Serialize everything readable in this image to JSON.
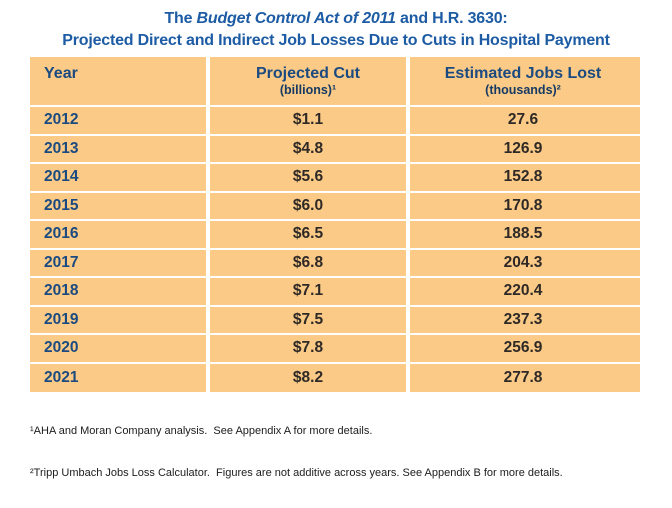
{
  "colors": {
    "table_background": "#FACA86",
    "title_blue": "#1D5CA4",
    "header_navy": "#1A4A80",
    "value_dark": "#2E2926",
    "grid_line": "#FFFFFF"
  },
  "title": {
    "line1_prefix": "The ",
    "line1_italic": "Budget Control Act of 2011",
    "line1_suffix": " and H.R. 3630:",
    "line2": "Projected Direct and Indirect Job Losses Due to Cuts in Hospital Payment"
  },
  "table": {
    "headers": {
      "year": "Year",
      "cut_main": "Projected Cut",
      "cut_sub": "(billions)¹",
      "jobs_main": "Estimated Jobs Lost",
      "jobs_sub": "(thousands)²"
    },
    "rows": [
      {
        "year": "2012",
        "cut": "$1.1",
        "jobs": "27.6"
      },
      {
        "year": "2013",
        "cut": "$4.8",
        "jobs": "126.9"
      },
      {
        "year": "2014",
        "cut": "$5.6",
        "jobs": "152.8"
      },
      {
        "year": "2015",
        "cut": "$6.0",
        "jobs": "170.8"
      },
      {
        "year": "2016",
        "cut": "$6.5",
        "jobs": "188.5"
      },
      {
        "year": "2017",
        "cut": "$6.8",
        "jobs": "204.3"
      },
      {
        "year": "2018",
        "cut": "$7.1",
        "jobs": "220.4"
      },
      {
        "year": "2019",
        "cut": "$7.5",
        "jobs": "237.3"
      },
      {
        "year": "2020",
        "cut": "$7.8",
        "jobs": "256.9"
      },
      {
        "year": "2021",
        "cut": "$8.2",
        "jobs": "277.8"
      }
    ]
  },
  "footnotes": {
    "line1": "¹AHA and Moran Company analysis.  See Appendix A for more details.",
    "line2": "²Tripp Umbach Jobs Loss Calculator.  Figures are not additive across years. See Appendix B for more details."
  },
  "chart_data": {
    "type": "table",
    "title": "The Budget Control Act of 2011 and H.R. 3630: Projected Direct and Indirect Job Losses Due to Cuts in Hospital Payment",
    "columns": [
      "Year",
      "Projected Cut (billions)",
      "Estimated Jobs Lost (thousands)"
    ],
    "rows": [
      [
        2012,
        1.1,
        27.6
      ],
      [
        2013,
        4.8,
        126.9
      ],
      [
        2014,
        5.6,
        152.8
      ],
      [
        2015,
        6.0,
        170.8
      ],
      [
        2016,
        6.5,
        188.5
      ],
      [
        2017,
        6.8,
        204.3
      ],
      [
        2018,
        7.1,
        220.4
      ],
      [
        2019,
        7.5,
        237.3
      ],
      [
        2020,
        7.8,
        256.9
      ],
      [
        2021,
        8.2,
        277.8
      ]
    ],
    "footnotes": [
      "¹AHA and Moran Company analysis.  See Appendix A for more details.",
      "²Tripp Umbach Jobs Loss Calculator.  Figures are not additive across years. See Appendix B for more details."
    ]
  }
}
